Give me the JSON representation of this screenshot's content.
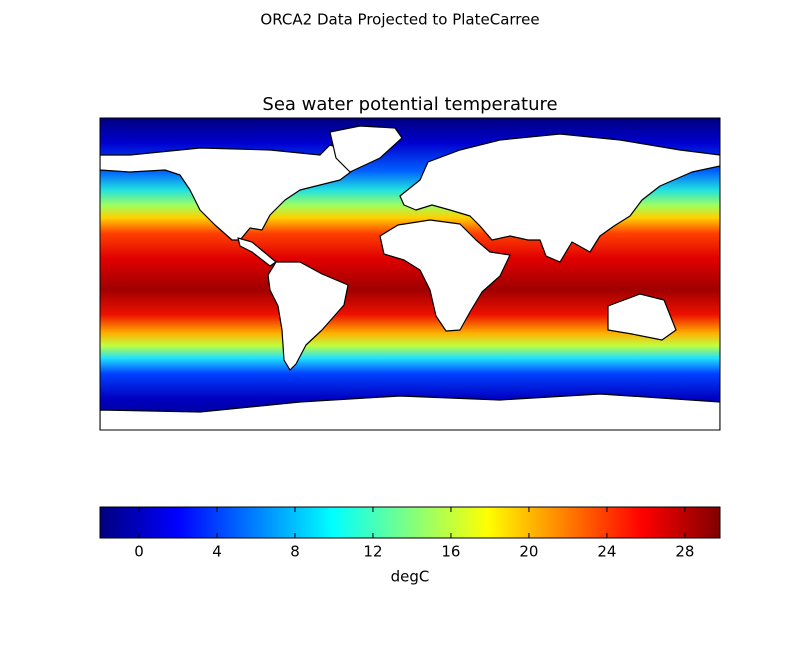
{
  "title": "ORCA2 Data Projected to PlateCarree",
  "map": {
    "title": "Sea water potential temperature"
  },
  "colorbar": {
    "label": "degC",
    "colormap": "jet",
    "range": [
      -2,
      29.8
    ],
    "ticks": [
      0,
      4,
      8,
      12,
      16,
      20,
      24,
      28
    ]
  }
}
